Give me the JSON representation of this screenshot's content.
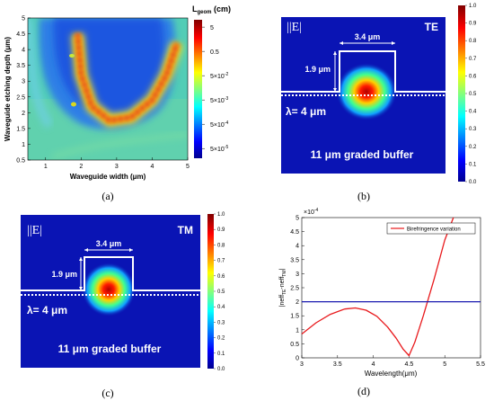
{
  "captions": {
    "a": "(a)",
    "b": "(b)",
    "c": "(c)",
    "d": "(d)"
  },
  "chart_data": [
    {
      "type": "heatmap",
      "panel": "a",
      "xlabel": "Waveguide width (μm)",
      "ylabel": "Waveguide etching depth (μm)",
      "xlim": [
        0.5,
        5
      ],
      "ylim": [
        0.5,
        5
      ],
      "xticks": [
        "1",
        "2",
        "3",
        "4",
        "5"
      ],
      "yticks": [
        "0.5",
        "1",
        "1.5",
        "2",
        "2.5",
        "3",
        "3.5",
        "4",
        "4.5",
        "5"
      ],
      "colorbar": {
        "title": "L",
        "title_sub": "geom",
        "title_unit": " (cm)",
        "ticks": [
          "5",
          "0.5",
          "5×10",
          "5×10",
          "5×10",
          "5×10"
        ],
        "tick_exponents": [
          "",
          "",
          "-2",
          "-3",
          "-4",
          "-5"
        ],
        "log_values": [
          0.699,
          -0.301,
          -1.301,
          -2.301,
          -3.301,
          -4.301
        ]
      },
      "ridge": {
        "description_points_x": [
          1.9,
          2.0,
          2.3,
          2.8,
          3.4,
          4.0,
          4.4,
          4.7
        ],
        "description_points_y": [
          4.5,
          3.2,
          2.2,
          1.75,
          1.85,
          2.4,
          3.2,
          4.2
        ]
      }
    },
    {
      "type": "heatmap",
      "panel": "b",
      "field_symbol": "|E|",
      "mode": "TE",
      "width_label": "3.4 μm",
      "depth_label": "1.9 μm",
      "wavelength_label": "λ= 4 μm",
      "buffer_label": "11 μm graded buffer",
      "colorbar_ticks": [
        "1.0",
        "0.9",
        "0.8",
        "0.7",
        "0.6",
        "0.5",
        "0.4",
        "0.3",
        "0.2",
        "0.1",
        "0.0"
      ]
    },
    {
      "type": "heatmap",
      "panel": "c",
      "field_symbol": "|E|",
      "mode": "TM",
      "width_label": "3.4 μm",
      "depth_label": "1.9 μm",
      "wavelength_label": "λ= 4 μm",
      "buffer_label": "11 μm graded buffer",
      "colorbar_ticks": [
        "1.0",
        "0.9",
        "0.8",
        "0.7",
        "0.6",
        "0.5",
        "0.4",
        "0.3",
        "0.2",
        "0.1",
        "0.0"
      ]
    },
    {
      "type": "line",
      "panel": "d",
      "xlabel": "Wavelength(μm)",
      "ylabel": "|neff",
      "ylabel_sub1": "TE",
      "ylabel_mid": "-neff",
      "ylabel_sub2": "TM",
      "ylabel_end": "|",
      "xlim": [
        3,
        5.5
      ],
      "ylim": [
        0,
        5
      ],
      "y_multiplier": "×10",
      "y_multiplier_exp": "-4",
      "xticks": [
        "3",
        "3.5",
        "4",
        "4.5",
        "5",
        "5.5"
      ],
      "yticks": [
        "0",
        "0.5",
        "1",
        "1.5",
        "2",
        "2.5",
        "3",
        "3.5",
        "4",
        "4.5",
        "5"
      ],
      "legend": "top-right",
      "series": [
        {
          "name": "Birefringence variation",
          "color": "#e8191c",
          "x": [
            3.0,
            3.2,
            3.4,
            3.6,
            3.75,
            3.9,
            4.05,
            4.2,
            4.32,
            4.42,
            4.5,
            4.58,
            4.7,
            4.85,
            5.0,
            5.12
          ],
          "y": [
            0.85,
            1.25,
            1.55,
            1.74,
            1.78,
            1.7,
            1.48,
            1.1,
            0.7,
            0.3,
            0.08,
            0.55,
            1.5,
            2.8,
            4.2,
            5.0
          ]
        },
        {
          "name": "",
          "color": "#1a1ab0",
          "x": [
            3.0,
            5.5
          ],
          "y": [
            2.0,
            2.0
          ]
        }
      ]
    }
  ]
}
